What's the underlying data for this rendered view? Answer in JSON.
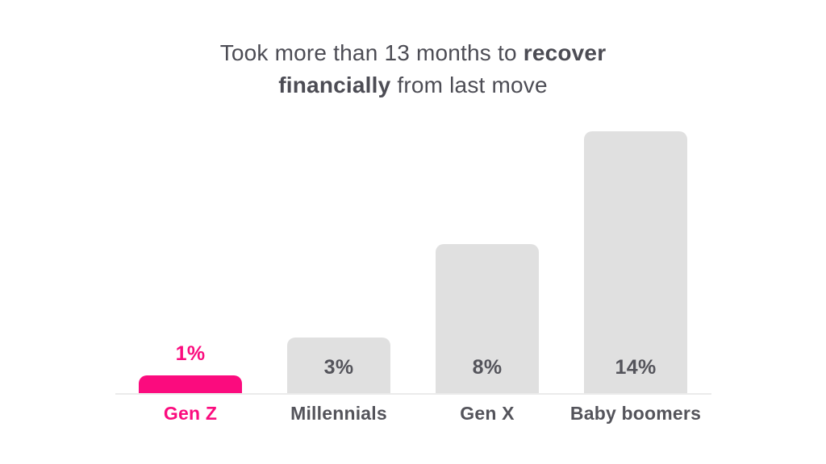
{
  "chart_data": {
    "type": "bar",
    "title": "Took more than 13 months to recover financially from last move",
    "title_lines": [
      {
        "regular": "Took more than 13 months to ",
        "bold": "recover"
      },
      {
        "bold": "financially",
        "regular": " from last move"
      }
    ],
    "categories": [
      "Gen Z",
      "Millennials",
      "Gen X",
      "Baby boomers"
    ],
    "values": [
      1,
      3,
      8,
      14
    ],
    "unit": "%",
    "xlabel": "",
    "ylabel": "",
    "ylim": [
      0,
      15
    ],
    "grid": false,
    "legend": "none",
    "pixels_per_unit": 23.3,
    "bars": [
      {
        "category": "Gen Z",
        "value": 1,
        "label": "1%",
        "highlighted": true,
        "label_position": "above"
      },
      {
        "category": "Millennials",
        "value": 3,
        "label": "3%",
        "highlighted": false,
        "label_position": "inside"
      },
      {
        "category": "Gen X",
        "value": 8,
        "label": "8%",
        "highlighted": false,
        "label_position": "inside"
      },
      {
        "category": "Baby boomers",
        "value": 14,
        "label": "14%",
        "highlighted": false,
        "label_position": "inside"
      }
    ],
    "colors": {
      "highlight": "#fb0b7e",
      "bar": "#e0e0e0",
      "text_dark": "#54545b",
      "title_text": "#4c4c54",
      "axis": "#ebebeb",
      "background": "#ffffff"
    }
  }
}
